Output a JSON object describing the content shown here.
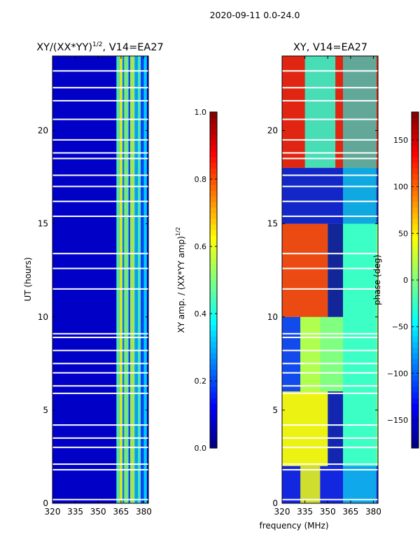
{
  "figure": {
    "suptitle": "2020-09-11 0.0-24.0",
    "shared_xlabel": "frequency (MHz)"
  },
  "chart_data": [
    {
      "type": "heatmap",
      "title_main": "XY/(XX*YY)",
      "title_sup": "1/2",
      "title_suffix": ", V14=EA27",
      "xlabel": "",
      "ylabel": "UT (hours)",
      "xlim": [
        320,
        383
      ],
      "ylim": [
        0,
        24
      ],
      "xticks": [
        320,
        335,
        350,
        365,
        380
      ],
      "yticks": [
        0,
        5,
        10,
        15,
        20
      ],
      "colorbar": {
        "label_main": "XY amp. / (XX*YY amp)",
        "label_sup": "1/2",
        "range": [
          0.0,
          1.0
        ],
        "ticks": [
          "0.0",
          "0.2",
          "0.4",
          "0.6",
          "0.8",
          "1.0"
        ],
        "colormap": "jet"
      },
      "background_value": 0.07,
      "bands": [
        {
          "x0": 362,
          "x1": 364,
          "value": 0.45
        },
        {
          "x0": 364,
          "x1": 366,
          "value": 0.6
        },
        {
          "x0": 366,
          "x1": 367,
          "value": 0.25
        },
        {
          "x0": 367,
          "x1": 370,
          "value": 0.5
        },
        {
          "x0": 370,
          "x1": 371,
          "value": 0.2
        },
        {
          "x0": 371,
          "x1": 374,
          "value": 0.55
        },
        {
          "x0": 374,
          "x1": 376,
          "value": 0.3
        },
        {
          "x0": 376,
          "x1": 378,
          "value": 0.45
        },
        {
          "x0": 378,
          "x1": 380,
          "value": 0.2
        },
        {
          "x0": 380,
          "x1": 382,
          "value": 0.35
        }
      ]
    },
    {
      "type": "heatmap",
      "title_main": "XY, V14=EA27",
      "title_sup": "",
      "title_suffix": "",
      "xlabel": "frequency (MHz)",
      "ylabel": "",
      "xlim": [
        320,
        383
      ],
      "ylim": [
        0,
        24
      ],
      "xticks": [
        320,
        335,
        350,
        365,
        380
      ],
      "yticks": [
        0,
        5,
        10,
        15,
        20
      ],
      "colorbar": {
        "label_main": "phase (deg)",
        "label_sup": "",
        "range": [
          -180,
          180
        ],
        "ticks": [
          "−150",
          "−100",
          "−50",
          "0",
          "50",
          "100",
          "150"
        ],
        "colormap": "jet"
      },
      "regions": [
        {
          "t0": 0,
          "t1": 2,
          "x0": 320,
          "x1": 383,
          "value": -140
        },
        {
          "t0": 0,
          "t1": 2,
          "x0": 332,
          "x1": 345,
          "value": 40
        },
        {
          "t0": 2,
          "t1": 6,
          "x0": 320,
          "x1": 350,
          "value": 50
        },
        {
          "t0": 2,
          "t1": 6,
          "x0": 350,
          "x1": 360,
          "value": -160
        },
        {
          "t0": 6,
          "t1": 10,
          "x0": 320,
          "x1": 332,
          "value": -120
        },
        {
          "t0": 6,
          "t1": 10,
          "x0": 332,
          "x1": 345,
          "value": 20
        },
        {
          "t0": 10,
          "t1": 15,
          "x0": 320,
          "x1": 350,
          "value": 120
        },
        {
          "t0": 10,
          "t1": 15,
          "x0": 350,
          "x1": 360,
          "value": -170
        },
        {
          "t0": 15,
          "t1": 18,
          "x0": 320,
          "x1": 383,
          "value": -150
        },
        {
          "t0": 18,
          "t1": 24,
          "x0": 320,
          "x1": 383,
          "value": 140
        },
        {
          "t0": 18,
          "t1": 24,
          "x0": 335,
          "x1": 355,
          "value": -30
        }
      ],
      "band": {
        "x0": 360,
        "x1": 382,
        "value": -40
      }
    }
  ],
  "flagged_times": [
    0.2,
    1.8,
    2.1,
    3.0,
    3.5,
    4.2,
    5.9,
    6.3,
    7.0,
    7.5,
    8.2,
    8.9,
    9.1,
    11.5,
    12.6,
    13.4,
    15.4,
    16.2,
    17.0,
    17.6,
    18.5,
    18.8,
    19.5,
    20.6,
    21.6,
    22.3,
    23.2
  ]
}
